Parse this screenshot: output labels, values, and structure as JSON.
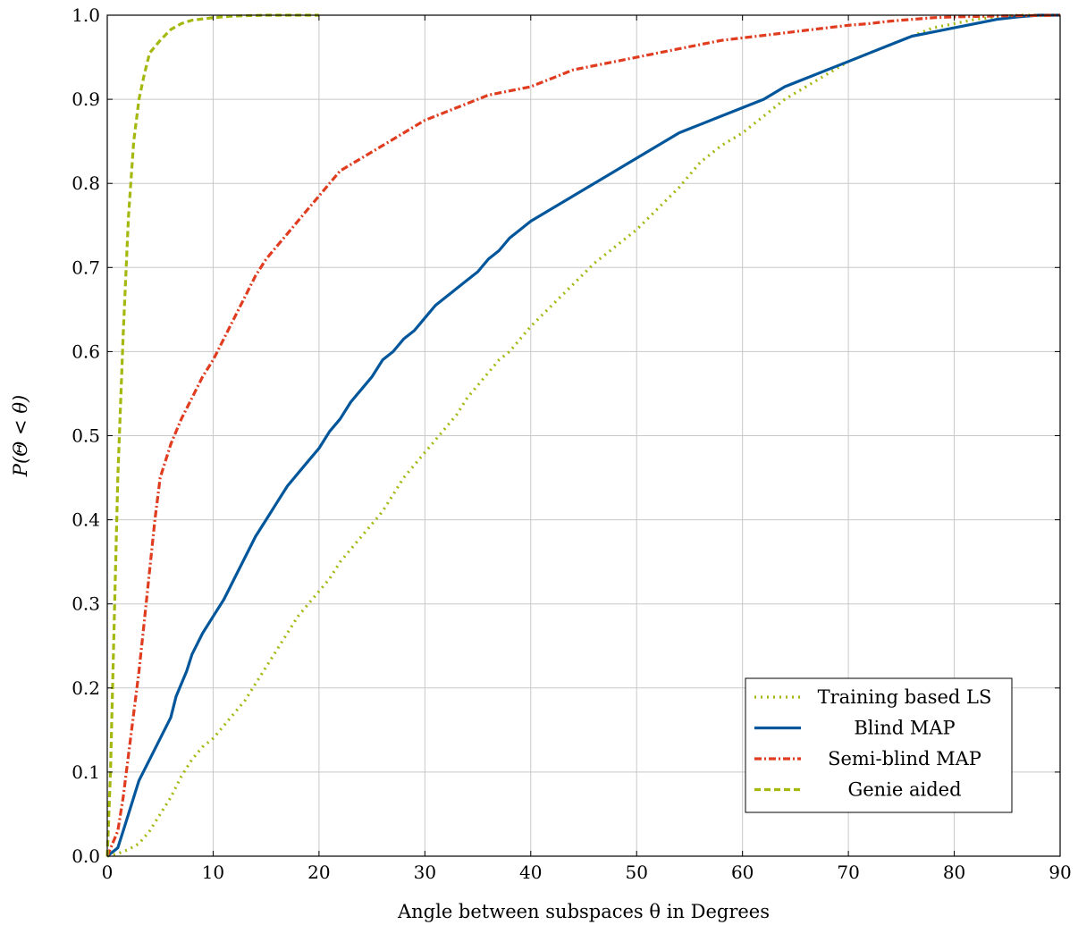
{
  "chart_data": {
    "type": "line",
    "xlabel": "Angle between subspaces θ in Degrees",
    "ylabel": "P(Θ < θ)",
    "xlim": [
      0,
      90
    ],
    "ylim": [
      0,
      1
    ],
    "xticks": [
      0,
      10,
      20,
      30,
      40,
      50,
      60,
      70,
      80,
      90
    ],
    "yticks": [
      0,
      0.1,
      0.2,
      0.3,
      0.4,
      0.5,
      0.6,
      0.7,
      0.8,
      0.9,
      1.0
    ],
    "xtick_labels": [
      "0",
      "10",
      "20",
      "30",
      "40",
      "50",
      "60",
      "70",
      "80",
      "90"
    ],
    "ytick_labels": [
      "0.0",
      "0.1",
      "0.2",
      "0.3",
      "0.4",
      "0.5",
      "0.6",
      "0.7",
      "0.8",
      "0.9",
      "1.0"
    ],
    "grid": true,
    "legend_position": "bottom-right",
    "series": [
      {
        "name": "Training based LS",
        "color": "#a5b80f",
        "style": "dotted",
        "points": [
          [
            0,
            0
          ],
          [
            1,
            0.003
          ],
          [
            2,
            0.008
          ],
          [
            3,
            0.015
          ],
          [
            4,
            0.03
          ],
          [
            5,
            0.05
          ],
          [
            6,
            0.07
          ],
          [
            7,
            0.095
          ],
          [
            8,
            0.115
          ],
          [
            9,
            0.13
          ],
          [
            10,
            0.14
          ],
          [
            11,
            0.155
          ],
          [
            12,
            0.17
          ],
          [
            13,
            0.185
          ],
          [
            14,
            0.205
          ],
          [
            15,
            0.225
          ],
          [
            16,
            0.245
          ],
          [
            17,
            0.265
          ],
          [
            18,
            0.285
          ],
          [
            19,
            0.3
          ],
          [
            20,
            0.315
          ],
          [
            21,
            0.33
          ],
          [
            22,
            0.35
          ],
          [
            23,
            0.365
          ],
          [
            24,
            0.38
          ],
          [
            25,
            0.395
          ],
          [
            26,
            0.41
          ],
          [
            27,
            0.43
          ],
          [
            28,
            0.45
          ],
          [
            29,
            0.465
          ],
          [
            30,
            0.48
          ],
          [
            31,
            0.495
          ],
          [
            32,
            0.51
          ],
          [
            33,
            0.525
          ],
          [
            34,
            0.545
          ],
          [
            35,
            0.56
          ],
          [
            36,
            0.575
          ],
          [
            37,
            0.59
          ],
          [
            38,
            0.6
          ],
          [
            39,
            0.615
          ],
          [
            40,
            0.63
          ],
          [
            42,
            0.655
          ],
          [
            44,
            0.68
          ],
          [
            46,
            0.705
          ],
          [
            48,
            0.725
          ],
          [
            50,
            0.745
          ],
          [
            52,
            0.77
          ],
          [
            54,
            0.795
          ],
          [
            56,
            0.825
          ],
          [
            58,
            0.845
          ],
          [
            60,
            0.86
          ],
          [
            62,
            0.88
          ],
          [
            64,
            0.9
          ],
          [
            66,
            0.915
          ],
          [
            68,
            0.93
          ],
          [
            70,
            0.945
          ],
          [
            72,
            0.955
          ],
          [
            74,
            0.965
          ],
          [
            76,
            0.975
          ],
          [
            78,
            0.985
          ],
          [
            80,
            0.99
          ],
          [
            82,
            0.995
          ],
          [
            84,
            0.998
          ],
          [
            86,
            1.0
          ],
          [
            90,
            1.0
          ]
        ]
      },
      {
        "name": "Blind MAP",
        "color": "#00569b",
        "style": "solid",
        "points": [
          [
            0,
            0
          ],
          [
            1,
            0.01
          ],
          [
            1.5,
            0.03
          ],
          [
            2,
            0.05
          ],
          [
            2.5,
            0.07
          ],
          [
            3,
            0.09
          ],
          [
            4,
            0.115
          ],
          [
            5,
            0.14
          ],
          [
            6,
            0.165
          ],
          [
            6.5,
            0.19
          ],
          [
            7.5,
            0.22
          ],
          [
            8,
            0.24
          ],
          [
            9,
            0.265
          ],
          [
            10,
            0.285
          ],
          [
            11,
            0.305
          ],
          [
            12,
            0.33
          ],
          [
            13,
            0.355
          ],
          [
            14,
            0.38
          ],
          [
            15,
            0.4
          ],
          [
            16,
            0.42
          ],
          [
            17,
            0.44
          ],
          [
            18,
            0.455
          ],
          [
            19,
            0.47
          ],
          [
            20,
            0.485
          ],
          [
            21,
            0.505
          ],
          [
            22,
            0.52
          ],
          [
            23,
            0.54
          ],
          [
            24,
            0.555
          ],
          [
            25,
            0.57
          ],
          [
            26,
            0.59
          ],
          [
            27,
            0.6
          ],
          [
            28,
            0.615
          ],
          [
            29,
            0.625
          ],
          [
            30,
            0.64
          ],
          [
            31,
            0.655
          ],
          [
            32,
            0.665
          ],
          [
            33,
            0.675
          ],
          [
            34,
            0.685
          ],
          [
            35,
            0.695
          ],
          [
            36,
            0.71
          ],
          [
            37,
            0.72
          ],
          [
            38,
            0.735
          ],
          [
            39,
            0.745
          ],
          [
            40,
            0.755
          ],
          [
            42,
            0.77
          ],
          [
            44,
            0.785
          ],
          [
            46,
            0.8
          ],
          [
            48,
            0.815
          ],
          [
            50,
            0.83
          ],
          [
            52,
            0.845
          ],
          [
            54,
            0.86
          ],
          [
            56,
            0.87
          ],
          [
            58,
            0.88
          ],
          [
            60,
            0.89
          ],
          [
            62,
            0.9
          ],
          [
            64,
            0.915
          ],
          [
            66,
            0.925
          ],
          [
            68,
            0.935
          ],
          [
            70,
            0.945
          ],
          [
            72,
            0.955
          ],
          [
            74,
            0.965
          ],
          [
            76,
            0.975
          ],
          [
            78,
            0.98
          ],
          [
            80,
            0.985
          ],
          [
            82,
            0.99
          ],
          [
            84,
            0.995
          ],
          [
            86,
            0.998
          ],
          [
            88,
            1.0
          ],
          [
            90,
            1.0
          ]
        ]
      },
      {
        "name": "Semi-blind MAP",
        "color": "#e03c1f",
        "style": "dashdot",
        "points": [
          [
            0,
            0
          ],
          [
            1,
            0.03
          ],
          [
            1.5,
            0.07
          ],
          [
            2,
            0.12
          ],
          [
            2.5,
            0.17
          ],
          [
            3,
            0.22
          ],
          [
            3.5,
            0.28
          ],
          [
            4,
            0.34
          ],
          [
            4.5,
            0.4
          ],
          [
            5,
            0.45
          ],
          [
            6,
            0.49
          ],
          [
            7,
            0.52
          ],
          [
            8,
            0.545
          ],
          [
            9,
            0.57
          ],
          [
            10,
            0.59
          ],
          [
            11,
            0.615
          ],
          [
            12,
            0.64
          ],
          [
            13,
            0.665
          ],
          [
            14,
            0.69
          ],
          [
            15,
            0.71
          ],
          [
            16,
            0.725
          ],
          [
            17,
            0.74
          ],
          [
            18,
            0.755
          ],
          [
            19,
            0.77
          ],
          [
            20,
            0.785
          ],
          [
            21,
            0.8
          ],
          [
            22,
            0.815
          ],
          [
            24,
            0.83
          ],
          [
            26,
            0.845
          ],
          [
            28,
            0.86
          ],
          [
            30,
            0.875
          ],
          [
            32,
            0.885
          ],
          [
            34,
            0.895
          ],
          [
            36,
            0.905
          ],
          [
            38,
            0.91
          ],
          [
            40,
            0.915
          ],
          [
            42,
            0.925
          ],
          [
            44,
            0.935
          ],
          [
            46,
            0.94
          ],
          [
            48,
            0.945
          ],
          [
            50,
            0.95
          ],
          [
            52,
            0.955
          ],
          [
            54,
            0.96
          ],
          [
            56,
            0.965
          ],
          [
            58,
            0.97
          ],
          [
            60,
            0.973
          ],
          [
            62,
            0.976
          ],
          [
            64,
            0.979
          ],
          [
            66,
            0.982
          ],
          [
            68,
            0.985
          ],
          [
            70,
            0.988
          ],
          [
            72,
            0.99
          ],
          [
            74,
            0.993
          ],
          [
            76,
            0.995
          ],
          [
            78,
            0.997
          ],
          [
            80,
            0.998
          ],
          [
            84,
            0.999
          ],
          [
            90,
            1.0
          ]
        ]
      },
      {
        "name": "Genie aided",
        "color": "#a5b80f",
        "style": "dashed",
        "points": [
          [
            0,
            0
          ],
          [
            0.3,
            0.1
          ],
          [
            0.6,
            0.25
          ],
          [
            1,
            0.45
          ],
          [
            1.5,
            0.62
          ],
          [
            2,
            0.76
          ],
          [
            2.5,
            0.85
          ],
          [
            3,
            0.9
          ],
          [
            3.5,
            0.93
          ],
          [
            4,
            0.955
          ],
          [
            5,
            0.97
          ],
          [
            6,
            0.983
          ],
          [
            7,
            0.99
          ],
          [
            8,
            0.994
          ],
          [
            10,
            0.997
          ],
          [
            12,
            0.999
          ],
          [
            15,
            1.0
          ],
          [
            20,
            1.0
          ]
        ]
      }
    ]
  }
}
